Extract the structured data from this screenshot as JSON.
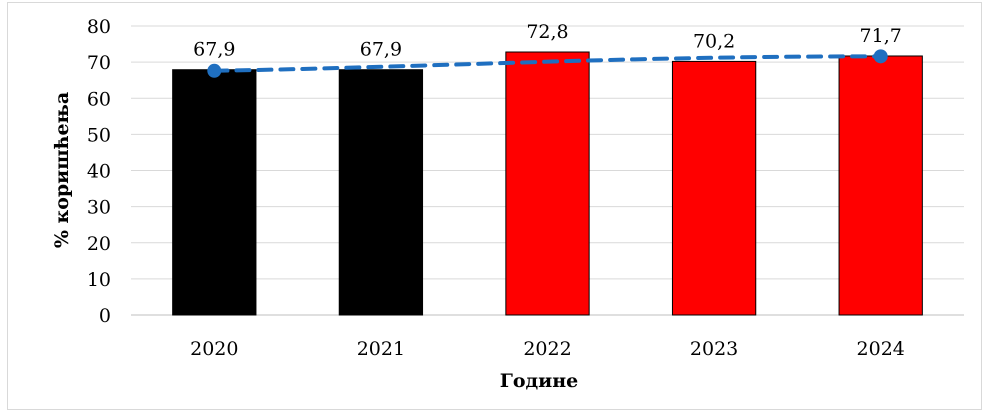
{
  "chart_data": {
    "type": "bar",
    "categories": [
      "2020",
      "2021",
      "2022",
      "2023",
      "2024"
    ],
    "values": [
      67.9,
      67.9,
      72.8,
      70.2,
      71.7
    ],
    "data_labels": [
      "67,9",
      "67,9",
      "72,8",
      "70,2",
      "71,7"
    ],
    "bar_colors": [
      "#000000",
      "#000000",
      "#ff0000",
      "#ff0000",
      "#ff0000"
    ],
    "trendline": {
      "style": "dashed",
      "color": "#1f6fc0",
      "marker_points": [
        {
          "category": "2020",
          "value": 67.6
        },
        {
          "category": "2024",
          "value": 71.6
        }
      ]
    },
    "xlabel": "Године",
    "ylabel": "% коришћења",
    "ylim": [
      0,
      80
    ],
    "yticks": [
      0,
      10,
      20,
      30,
      40,
      50,
      60,
      70,
      80
    ],
    "grid": true,
    "legend": "none"
  }
}
